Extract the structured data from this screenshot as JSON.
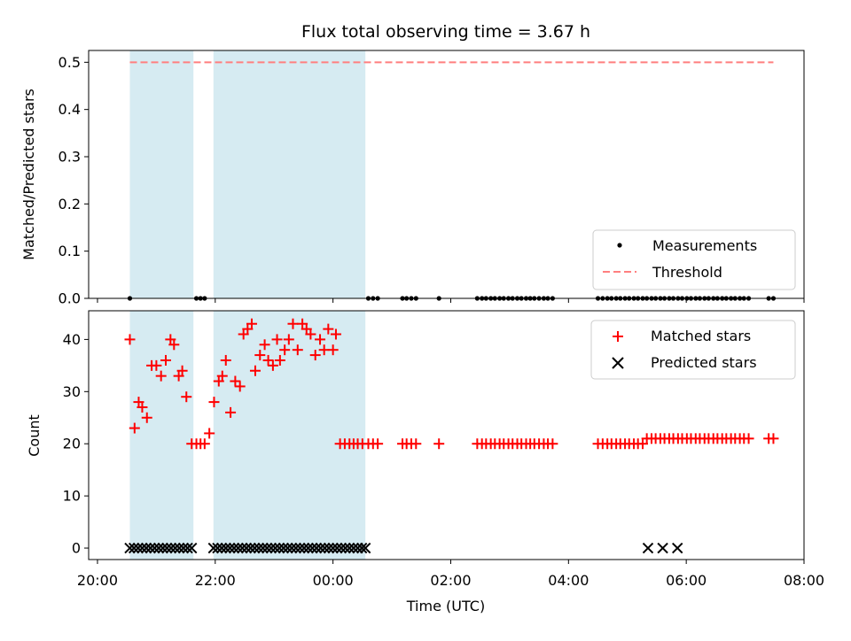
{
  "chart_data": {
    "type": "scatter",
    "title": "Flux total observing time = 3.67 h",
    "xlabel": "Time (UTC)",
    "x_unit": "hours since 20:00 UTC (x axis tick labels shown as clock times)",
    "xlim": [
      -0.15,
      12
    ],
    "xticks": [
      {
        "value": 0,
        "label": "20:00"
      },
      {
        "value": 2,
        "label": "22:00"
      },
      {
        "value": 4,
        "label": "00:00"
      },
      {
        "value": 6,
        "label": "02:00"
      },
      {
        "value": 8,
        "label": "04:00"
      },
      {
        "value": 10,
        "label": "06:00"
      },
      {
        "value": 12,
        "label": "08:00"
      }
    ],
    "observing_windows": [
      [
        0.55,
        1.63
      ],
      [
        1.97,
        4.55
      ]
    ],
    "window_color": "#add8e6",
    "panels": [
      {
        "id": "ratio",
        "ylabel": "Matched/Predicted stars",
        "ylim": [
          0,
          0.525
        ],
        "yticks": [
          {
            "value": 0.0,
            "label": "0.0"
          },
          {
            "value": 0.1,
            "label": "0.1"
          },
          {
            "value": 0.2,
            "label": "0.2"
          },
          {
            "value": 0.3,
            "label": "0.3"
          },
          {
            "value": 0.4,
            "label": "0.4"
          },
          {
            "value": 0.5,
            "label": "0.5"
          }
        ],
        "legend_position": "lower-right",
        "series": [
          {
            "name": "Measurements",
            "marker": "dot",
            "color": "#000000",
            "x": [
              0.55,
              1.68,
              1.75,
              1.82,
              4.6,
              4.68,
              4.76,
              5.18,
              5.25,
              5.33,
              5.41,
              5.8,
              6.45,
              6.53,
              6.6,
              6.68,
              6.75,
              6.83,
              6.9,
              6.98,
              7.05,
              7.13,
              7.2,
              7.28,
              7.35,
              7.42,
              7.5,
              7.58,
              7.65,
              7.73,
              8.5,
              8.58,
              8.66,
              8.73,
              8.81,
              8.88,
              8.96,
              9.03,
              9.11,
              9.18,
              9.26,
              9.33,
              9.41,
              9.48,
              9.56,
              9.63,
              9.71,
              9.78,
              9.86,
              9.93,
              10.01,
              10.08,
              10.16,
              10.23,
              10.31,
              10.38,
              10.46,
              10.53,
              10.61,
              10.68,
              10.76,
              10.83,
              10.91,
              10.98,
              11.06,
              11.4,
              11.48
            ],
            "y": [
              0,
              0,
              0,
              0,
              0,
              0,
              0,
              0,
              0,
              0,
              0,
              0,
              0,
              0,
              0,
              0,
              0,
              0,
              0,
              0,
              0,
              0,
              0,
              0,
              0,
              0,
              0,
              0,
              0,
              0,
              0,
              0,
              0,
              0,
              0,
              0,
              0,
              0,
              0,
              0,
              0,
              0,
              0,
              0,
              0,
              0,
              0,
              0,
              0,
              0,
              0,
              0,
              0,
              0,
              0,
              0,
              0,
              0,
              0,
              0,
              0,
              0,
              0,
              0,
              0,
              0,
              0
            ]
          },
          {
            "name": "Threshold",
            "marker": "dashed-line",
            "color": "#ff7f7f",
            "x": [
              0.55,
              11.48
            ],
            "y": [
              0.5,
              0.5
            ]
          }
        ]
      },
      {
        "id": "counts",
        "ylabel": "Count",
        "ylim": [
          -2.2,
          45.5
        ],
        "yticks": [
          {
            "value": 0,
            "label": "0"
          },
          {
            "value": 10,
            "label": "10"
          },
          {
            "value": 20,
            "label": "20"
          },
          {
            "value": 30,
            "label": "30"
          },
          {
            "value": 40,
            "label": "40"
          }
        ],
        "legend_position": "upper-right",
        "series": [
          {
            "name": "Matched stars",
            "marker": "plus",
            "color": "#ff0000",
            "x": [
              0.55,
              0.63,
              0.7,
              0.76,
              0.84,
              0.92,
              1.0,
              1.08,
              1.16,
              1.24,
              1.3,
              1.38,
              1.44,
              1.51,
              1.6,
              1.68,
              1.75,
              1.82,
              1.9,
              1.98,
              2.06,
              2.12,
              2.18,
              2.26,
              2.34,
              2.42,
              2.48,
              2.55,
              2.62,
              2.68,
              2.76,
              2.84,
              2.9,
              2.98,
              3.05,
              3.1,
              3.18,
              3.25,
              3.32,
              3.4,
              3.48,
              3.55,
              3.62,
              3.7,
              3.78,
              3.85,
              3.92,
              4.0,
              4.05,
              4.12,
              4.2,
              4.28,
              4.35,
              4.42,
              4.5,
              4.6,
              4.68,
              4.76,
              5.18,
              5.25,
              5.33,
              5.41,
              5.8,
              6.45,
              6.53,
              6.6,
              6.68,
              6.75,
              6.83,
              6.9,
              6.98,
              7.05,
              7.13,
              7.2,
              7.28,
              7.35,
              7.42,
              7.5,
              7.58,
              7.65,
              7.73,
              8.5,
              8.58,
              8.66,
              8.73,
              8.81,
              8.88,
              8.96,
              9.03,
              9.11,
              9.18,
              9.26,
              9.33,
              9.41,
              9.48,
              9.56,
              9.63,
              9.71,
              9.78,
              9.86,
              9.93,
              10.01,
              10.08,
              10.16,
              10.23,
              10.31,
              10.38,
              10.46,
              10.53,
              10.61,
              10.68,
              10.76,
              10.83,
              10.91,
              10.98,
              11.06,
              11.4,
              11.48
            ],
            "y": [
              40,
              23,
              28,
              27,
              25,
              35,
              35,
              33,
              36,
              40,
              39,
              33,
              34,
              29,
              20,
              20,
              20,
              20,
              22,
              28,
              32,
              33,
              36,
              26,
              32,
              31,
              41,
              42,
              43,
              34,
              37,
              39,
              36,
              35,
              40,
              36,
              38,
              40,
              43,
              38,
              43,
              42,
              41,
              37,
              40,
              38,
              42,
              38,
              41,
              20,
              20,
              20,
              20,
              20,
              20,
              20,
              20,
              20,
              20,
              20,
              20,
              20,
              20,
              20,
              20,
              20,
              20,
              20,
              20,
              20,
              20,
              20,
              20,
              20,
              20,
              20,
              20,
              20,
              20,
              20,
              20,
              20,
              20,
              20,
              20,
              20,
              20,
              20,
              20,
              20,
              20,
              20,
              21,
              21,
              21,
              21,
              21,
              21,
              21,
              21,
              21,
              21,
              21,
              21,
              21,
              21,
              21,
              21,
              21,
              21,
              21,
              21,
              21,
              21,
              21,
              21,
              21,
              21
            ]
          },
          {
            "name": "Predicted stars",
            "marker": "x",
            "color": "#000000",
            "x": [
              0.55,
              0.62,
              0.69,
              0.76,
              0.83,
              0.9,
              0.97,
              1.04,
              1.11,
              1.18,
              1.25,
              1.32,
              1.39,
              1.46,
              1.53,
              1.6,
              1.97,
              2.04,
              2.11,
              2.18,
              2.25,
              2.32,
              2.39,
              2.46,
              2.53,
              2.6,
              2.67,
              2.74,
              2.81,
              2.88,
              2.95,
              3.02,
              3.09,
              3.16,
              3.23,
              3.3,
              3.37,
              3.44,
              3.51,
              3.58,
              3.65,
              3.72,
              3.79,
              3.86,
              3.93,
              4.0,
              4.07,
              4.14,
              4.21,
              4.28,
              4.35,
              4.42,
              4.49,
              4.55,
              9.35,
              9.6,
              9.85
            ],
            "y": [
              0,
              0,
              0,
              0,
              0,
              0,
              0,
              0,
              0,
              0,
              0,
              0,
              0,
              0,
              0,
              0,
              0,
              0,
              0,
              0,
              0,
              0,
              0,
              0,
              0,
              0,
              0,
              0,
              0,
              0,
              0,
              0,
              0,
              0,
              0,
              0,
              0,
              0,
              0,
              0,
              0,
              0,
              0,
              0,
              0,
              0,
              0,
              0,
              0,
              0,
              0,
              0,
              0,
              0,
              0,
              0,
              0
            ]
          }
        ]
      }
    ]
  }
}
